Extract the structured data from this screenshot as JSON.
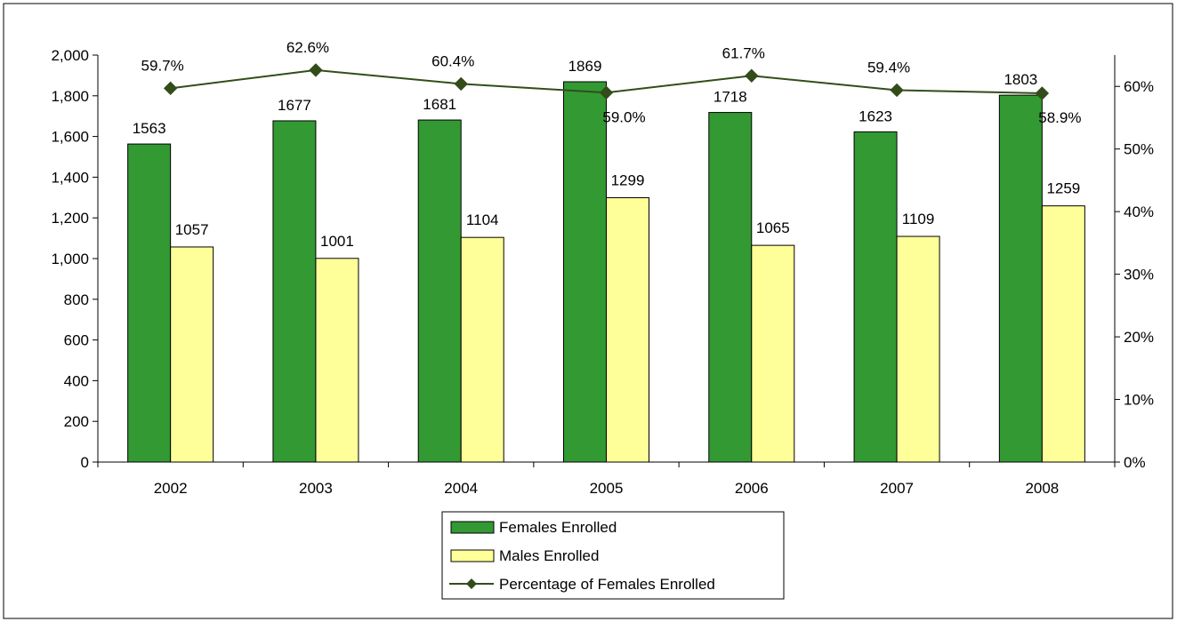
{
  "chart_data": {
    "type": "bar",
    "categories": [
      "2002",
      "2003",
      "2004",
      "2005",
      "2006",
      "2007",
      "2008"
    ],
    "series": [
      {
        "name": "Females Enrolled",
        "kind": "bar",
        "axis": "left",
        "color": "#339933",
        "values": [
          1563,
          1677,
          1681,
          1869,
          1718,
          1623,
          1803
        ],
        "labels": [
          "1563",
          "1677",
          "1681",
          "1869",
          "1718",
          "1623",
          "1803"
        ]
      },
      {
        "name": "Males Enrolled",
        "kind": "bar",
        "axis": "left",
        "color": "#FFFF99",
        "values": [
          1057,
          1001,
          1104,
          1299,
          1065,
          1109,
          1259
        ],
        "labels": [
          "1057",
          "1001",
          "1104",
          "1299",
          "1065",
          "1109",
          "1259"
        ]
      },
      {
        "name": "Percentage of Females Enrolled",
        "kind": "line",
        "axis": "right",
        "color": "#334D1A",
        "values": [
          59.7,
          62.6,
          60.4,
          59.0,
          61.7,
          59.4,
          58.9
        ],
        "labels": [
          "59.7%",
          "62.6%",
          "60.4%",
          "59.0%",
          "61.7%",
          "59.4%",
          "58.9%"
        ]
      }
    ],
    "y_left": {
      "min": 0,
      "max": 2000,
      "step": 200,
      "ticks": [
        "0",
        "200",
        "400",
        "600",
        "800",
        "1,000",
        "1,200",
        "1,400",
        "1,600",
        "1,800",
        "2,000"
      ]
    },
    "y_right": {
      "min": 0,
      "max": 65,
      "step": 10,
      "ticks": [
        "0%",
        "10%",
        "20%",
        "30%",
        "40%",
        "50%",
        "60%"
      ]
    },
    "title": "",
    "xlabel": "",
    "ylabel": "",
    "grid": false,
    "legend_position": "bottom-center"
  }
}
